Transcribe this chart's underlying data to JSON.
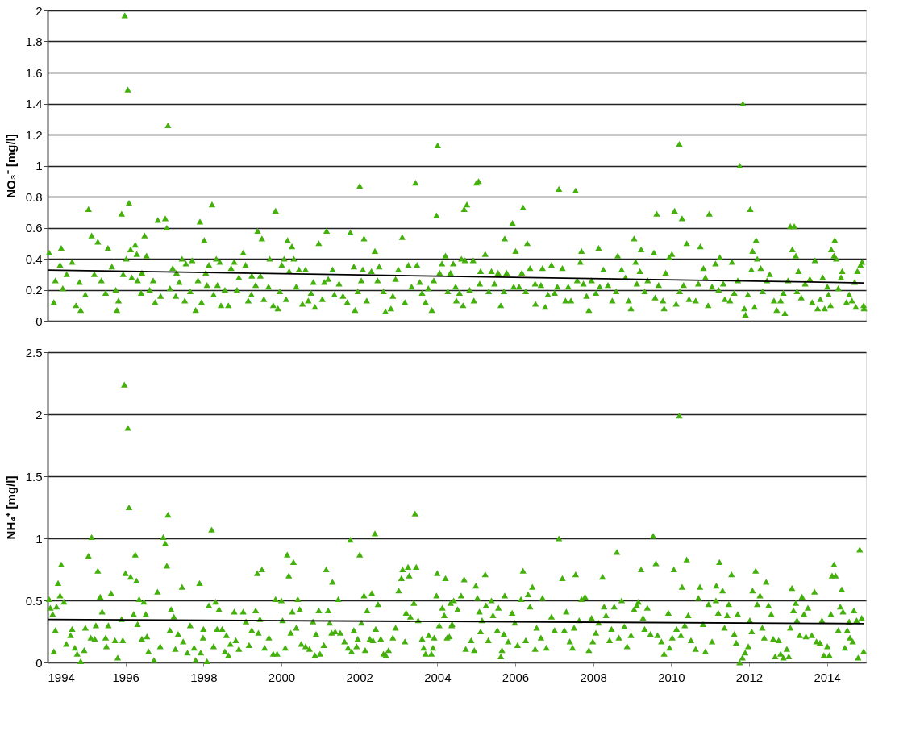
{
  "chart_data": [
    {
      "type": "scatter",
      "ylabel": "NO₃⁻ [mg/l]",
      "xlim": [
        1994,
        2015
      ],
      "xticks": [
        1994,
        1996,
        1998,
        2000,
        2002,
        2004,
        2006,
        2008,
        2010,
        2012,
        2014
      ],
      "ylim": [
        0,
        2
      ],
      "yticks": [
        0,
        0.2,
        0.4,
        0.6,
        0.8,
        1,
        1.2,
        1.4,
        1.6,
        1.8,
        2
      ],
      "grid": "y",
      "marker": "triangle",
      "tick_labels": "y",
      "series": [
        {
          "color": "#44b00c",
          "x": [
            1994.04,
            1994.16,
            1994.35,
            1994.32,
            1994.2,
            1994.63,
            1994.49,
            1994.39,
            1994.73,
            1994.85,
            1995.05,
            1995.13,
            1995.29,
            1995.55,
            1995.2,
            1995.38,
            1995.49,
            1994.97,
            1994.82,
            1995.9,
            1995.98,
            1996.06,
            1996.09,
            1995.78,
            1995.82,
            1995.75,
            1995.65,
            1995.94,
            1996.02,
            1996.13,
            1996.25,
            1996.29,
            1996.16,
            1996.31,
            1996.4,
            1996.42,
            1996.49,
            1996.54,
            1996.62,
            1996.71,
            1996.83,
            1997.02,
            1997.06,
            1997.09,
            1996.76,
            1996.9,
            1997.14,
            1997.21,
            1997.31,
            1997.38,
            1997.29,
            1997.45,
            1997.55,
            1997.71,
            1997.52,
            1997.66,
            1997.8,
            1997.86,
            1997.95,
            1997.91,
            1998.02,
            1998.22,
            1998.14,
            1998.09,
            1998.06,
            1998.26,
            1998.33,
            1998.42,
            1998.36,
            1998.45,
            1998.55,
            1998.64,
            1998.71,
            1998.79,
            1998.86,
            1998.91,
            1999.02,
            1999.08,
            1999.15,
            1999.23,
            1999.24,
            1999.39,
            1999.5,
            1999.34,
            1999.46,
            1999.55,
            1999.67,
            1999.7,
            1999.79,
            1999.85,
            1999.91,
            1999.96,
            2000.07,
            2000.01,
            2000.16,
            2000.27,
            2000.32,
            2000.2,
            2000.12,
            2000.38,
            2000.45,
            2000.54,
            2000.62,
            2000.69,
            2000.76,
            2000.82,
            2000.86,
            2000.96,
            2001.05,
            2001.1,
            2001.16,
            2001.2,
            2001.31,
            2001.36,
            2001.48,
            2001.58,
            2001.69,
            2001.77,
            2001.86,
            2001.89,
            2001.96,
            2002.01,
            2002.05,
            2002.09,
            2002.12,
            2002.19,
            2002.31,
            2002.4,
            2002.47,
            2002.51,
            2002.62,
            2002.67,
            2002.81,
            2002.86,
            2002.93,
            2003.0,
            2003.1,
            2003.17,
            2003.26,
            2003.34,
            2003.44,
            2003.48,
            2003.55,
            2003.61,
            2003.7,
            2003.77,
            2003.86,
            2003.91,
            2003.98,
            2004.01,
            2004.06,
            2004.12,
            2004.21,
            2004.27,
            2004.34,
            2004.41,
            2004.34,
            2004.47,
            2004.57,
            2004.49,
            2004.69,
            2004.76,
            2004.62,
            2004.71,
            2004.92,
            2004.83,
            2004.94,
            2004.66,
            2005.01,
            2005.06,
            2005.11,
            2005.23,
            2005.09,
            2005.32,
            2005.39,
            2005.47,
            2005.56,
            2005.63,
            2005.73,
            2005.78,
            2005.71,
            2005.93,
            2006.01,
            2005.96,
            2006.1,
            2006.17,
            2006.2,
            2006.31,
            2006.27,
            2006.38,
            2006.51,
            2006.52,
            2006.66,
            2006.7,
            2006.77,
            2006.84,
            2006.93,
            2007.01,
            2007.12,
            2007.08,
            2007.21,
            2007.29,
            2007.43,
            2007.36,
            2007.55,
            2007.59,
            2007.67,
            2007.7,
            2007.75,
            2007.83,
            2007.89,
            2007.96,
            2008.07,
            2008.14,
            2008.17,
            2008.26,
            2008.38,
            2008.49,
            2008.63,
            2008.59,
            2008.73,
            2008.83,
            2008.91,
            2008.97,
            2009.05,
            2009.09,
            2009.12,
            2009.23,
            2009.2,
            2009.32,
            2009.4,
            2009.56,
            2009.59,
            2009.63,
            2009.68,
            2009.79,
            2009.86,
            2009.82,
            2009.95,
            2010.02,
            2010.09,
            2010.13,
            2010.21,
            2010.28,
            2010.22,
            2010.32,
            2010.4,
            2010.46,
            2010.63,
            2010.7,
            2010.75,
            2010.83,
            2010.88,
            2010.95,
            2010.98,
            2011.05,
            2011.14,
            2011.25,
            2011.22,
            2011.34,
            2011.38,
            2011.51,
            2011.56,
            2011.62,
            2011.71,
            2011.76,
            2011.84,
            2011.88,
            2011.91,
            2011.97,
            2012.03,
            2012.06,
            2012.09,
            2012.18,
            2012.21,
            2012.3,
            2012.14,
            2012.35,
            2012.46,
            2012.53,
            2012.64,
            2012.71,
            2012.81,
            2012.92,
            2012.88,
            2013.0,
            2013.06,
            2013.16,
            2013.11,
            2013.2,
            2013.27,
            2013.23,
            2013.34,
            2013.44,
            2013.56,
            2013.62,
            2013.69,
            2013.76,
            2013.83,
            2013.89,
            2013.94,
            2014.01,
            2014.04,
            2014.09,
            2014.11,
            2014.2,
            2014.18,
            2014.24,
            2014.29,
            2014.36,
            2014.39,
            2014.5,
            2014.57,
            2014.64,
            2014.71,
            2014.74,
            2014.78,
            2014.86,
            2014.9,
            2014.95,
            2014.94
          ],
          "values": [
            0.44,
            0.12,
            0.47,
            0.36,
            0.26,
            0.38,
            0.3,
            0.21,
            0.1,
            0.07,
            0.72,
            0.55,
            0.51,
            0.47,
            0.3,
            0.26,
            0.18,
            0.17,
            0.25,
            0.69,
            1.97,
            1.49,
            0.76,
            0.07,
            0.13,
            0.2,
            0.35,
            0.3,
            0.4,
            0.46,
            0.49,
            0.43,
            0.28,
            0.26,
            0.18,
            0.31,
            0.55,
            0.42,
            0.2,
            0.26,
            0.65,
            0.66,
            0.6,
            1.26,
            0.12,
            0.16,
            0.21,
            0.34,
            0.31,
            0.25,
            0.16,
            0.4,
            0.37,
            0.39,
            0.13,
            0.19,
            0.07,
            0.26,
            0.12,
            0.64,
            0.52,
            0.75,
            0.36,
            0.23,
            0.31,
            0.17,
            0.4,
            0.38,
            0.23,
            0.1,
            0.2,
            0.1,
            0.34,
            0.38,
            0.2,
            0.28,
            0.44,
            0.36,
            0.13,
            0.17,
            0.29,
            0.58,
            0.53,
            0.23,
            0.29,
            0.14,
            0.22,
            0.4,
            0.1,
            0.71,
            0.08,
            0.19,
            0.4,
            0.36,
            0.52,
            0.48,
            0.4,
            0.32,
            0.14,
            0.22,
            0.33,
            0.11,
            0.33,
            0.13,
            0.18,
            0.25,
            0.09,
            0.5,
            0.14,
            0.25,
            0.58,
            0.27,
            0.33,
            0.17,
            0.24,
            0.16,
            0.12,
            0.57,
            0.35,
            0.07,
            0.19,
            0.87,
            0.26,
            0.33,
            0.53,
            0.13,
            0.32,
            0.45,
            0.26,
            0.35,
            0.19,
            0.06,
            0.08,
            0.16,
            0.27,
            0.33,
            0.54,
            0.12,
            0.36,
            0.22,
            0.89,
            0.36,
            0.25,
            0.18,
            0.12,
            0.21,
            0.07,
            0.26,
            0.68,
            1.13,
            0.31,
            0.37,
            0.42,
            0.19,
            0.31,
            0.37,
            0.3,
            0.22,
            0.18,
            0.13,
            0.72,
            0.75,
            0.4,
            0.39,
            0.39,
            0.2,
            0.13,
            0.1,
            0.89,
            0.9,
            0.32,
            0.43,
            0.24,
            0.19,
            0.32,
            0.24,
            0.31,
            0.1,
            0.53,
            0.31,
            0.19,
            0.63,
            0.45,
            0.22,
            0.22,
            0.31,
            0.73,
            0.5,
            0.19,
            0.34,
            0.24,
            0.11,
            0.23,
            0.34,
            0.09,
            0.17,
            0.36,
            0.18,
            0.85,
            0.22,
            0.34,
            0.13,
            0.13,
            0.22,
            0.84,
            0.26,
            0.38,
            0.45,
            0.24,
            0.16,
            0.07,
            0.26,
            0.18,
            0.47,
            0.22,
            0.33,
            0.23,
            0.13,
            0.42,
            0.19,
            0.33,
            0.28,
            0.13,
            0.08,
            0.53,
            0.38,
            0.24,
            0.46,
            0.32,
            0.19,
            0.26,
            0.44,
            0.15,
            0.69,
            0.23,
            0.13,
            0.31,
            0.08,
            0.41,
            0.43,
            0.71,
            0.11,
            1.14,
            0.66,
            0.19,
            0.23,
            0.5,
            0.14,
            0.13,
            0.24,
            0.48,
            0.34,
            0.28,
            0.1,
            0.69,
            0.22,
            0.37,
            0.41,
            0.2,
            0.24,
            0.14,
            0.13,
            0.38,
            0.18,
            0.26,
            1.0,
            1.4,
            0.08,
            0.04,
            0.17,
            0.72,
            0.33,
            0.45,
            0.52,
            0.4,
            0.34,
            0.09,
            0.19,
            0.26,
            0.3,
            0.13,
            0.07,
            0.13,
            0.05,
            0.18,
            0.26,
            0.61,
            0.61,
            0.46,
            0.42,
            0.32,
            0.19,
            0.15,
            0.24,
            0.27,
            0.12,
            0.39,
            0.08,
            0.14,
            0.28,
            0.08,
            0.22,
            0.17,
            0.1,
            0.46,
            0.52,
            0.42,
            0.4,
            0.21,
            0.28,
            0.32,
            0.12,
            0.17,
            0.13,
            0.25,
            0.09,
            0.32,
            0.36,
            0.38,
            0.08,
            0.1
          ]
        },
        {
          "type": "line",
          "marker": "none",
          "color": "#000000",
          "x": [
            1994,
            2014.95
          ],
          "values": [
            0.327,
            0.244
          ]
        }
      ]
    },
    {
      "type": "scatter",
      "ylabel": "NH₄⁺ [mg/l]",
      "xlim": [
        1994,
        2015
      ],
      "xticks": [
        1994,
        1996,
        1998,
        2000,
        2002,
        2004,
        2006,
        2008,
        2010,
        2012,
        2014
      ],
      "ylim": [
        0,
        2.5
      ],
      "yticks": [
        0,
        0.5,
        1,
        1.5,
        2,
        2.5
      ],
      "grid": "y",
      "marker": "triangle",
      "series": [
        {
          "color": "#44b00c",
          "x": [
            1994.04,
            1994.07,
            1994.13,
            1994.23,
            1994.16,
            1994.2,
            1994.27,
            1994.35,
            1994.32,
            1994.42,
            1994.48,
            1994.59,
            1994.63,
            1994.7,
            1994.76,
            1994.85,
            1994.94,
            1994.97,
            1995.05,
            1995.13,
            1995.11,
            1995.21,
            1995.24,
            1995.29,
            1995.35,
            1995.4,
            1995.49,
            1995.51,
            1995.56,
            1995.63,
            1995.73,
            1995.8,
            1995.9,
            1995.93,
            1995.97,
            1996.06,
            1996.09,
            1996.0,
            1996.13,
            1996.21,
            1996.25,
            1996.28,
            1996.31,
            1996.35,
            1996.42,
            1996.47,
            1996.52,
            1996.55,
            1996.59,
            1996.73,
            1996.82,
            1996.89,
            1996.97,
            1997.02,
            1997.09,
            1997.06,
            1997.14,
            1997.17,
            1997.24,
            1997.28,
            1997.35,
            1997.45,
            1997.48,
            1997.59,
            1997.66,
            1997.76,
            1997.8,
            1997.9,
            1997.93,
            1998.0,
            1997.99,
            1998.09,
            1998.14,
            1998.21,
            1998.31,
            1998.26,
            1998.4,
            1998.35,
            1998.48,
            1998.55,
            1998.64,
            1998.59,
            1998.69,
            1998.79,
            1998.83,
            1998.91,
            1999.02,
            1999.09,
            1999.17,
            1999.24,
            1999.34,
            1999.38,
            1999.5,
            1999.45,
            1999.41,
            1999.57,
            1999.68,
            1999.79,
            1999.85,
            1999.89,
            2000.0,
            2000.03,
            2000.1,
            2000.15,
            2000.19,
            2000.31,
            2000.28,
            2000.24,
            2000.38,
            2000.42,
            2000.47,
            2000.51,
            2000.62,
            2000.72,
            2000.81,
            2000.86,
            2000.89,
            2000.96,
            2000.99,
            2001.09,
            2001.15,
            2001.2,
            2001.24,
            2001.31,
            2001.29,
            2001.38,
            2001.46,
            2001.51,
            2001.62,
            2001.71,
            2001.77,
            2001.8,
            2001.86,
            2001.96,
            2001.93,
            2002.01,
            2002.05,
            2002.12,
            2002.15,
            2002.2,
            2002.27,
            2002.32,
            2002.35,
            2002.4,
            2002.42,
            2002.48,
            2002.55,
            2002.62,
            2002.68,
            2002.75,
            2002.86,
            2002.93,
            2003.01,
            2003.08,
            2003.11,
            2003.17,
            2003.25,
            2003.28,
            2003.2,
            2003.31,
            2003.4,
            2003.43,
            2003.46,
            2003.51,
            2003.61,
            2003.65,
            2003.7,
            2003.78,
            2003.85,
            2003.89,
            2003.92,
            2004.0,
            2003.98,
            2004.05,
            2004.13,
            2004.18,
            2004.21,
            2004.25,
            2004.34,
            2004.37,
            2004.42,
            2004.52,
            2004.38,
            2004.31,
            2004.69,
            2004.61,
            2004.73,
            2004.87,
            2004.95,
            2004.99,
            2005.03,
            2005.08,
            2005.15,
            2005.11,
            2005.23,
            2005.25,
            2005.31,
            2005.39,
            2005.43,
            2005.57,
            2005.54,
            2005.63,
            2005.66,
            2005.73,
            2005.71,
            2005.82,
            2005.92,
            2005.99,
            2006.06,
            2006.15,
            2006.2,
            2006.27,
            2006.38,
            2006.33,
            2006.44,
            2006.51,
            2006.55,
            2006.7,
            2006.66,
            2006.8,
            2006.93,
            2007.01,
            2007.12,
            2007.21,
            2007.26,
            2007.31,
            2007.4,
            2007.47,
            2007.51,
            2007.55,
            2007.64,
            2007.7,
            2007.79,
            2007.89,
            2007.96,
            2007.99,
            2008.07,
            2008.14,
            2008.24,
            2008.28,
            2008.33,
            2008.42,
            2008.47,
            2008.54,
            2008.61,
            2008.66,
            2008.73,
            2008.8,
            2008.87,
            2008.97,
            2009.05,
            2009.12,
            2009.16,
            2009.23,
            2009.28,
            2009.32,
            2009.39,
            2009.47,
            2009.54,
            2009.61,
            2009.65,
            2009.75,
            2009.82,
            2009.93,
            2009.96,
            2010.07,
            2010.03,
            2010.14,
            2010.21,
            2010.25,
            2010.28,
            2010.35,
            2010.4,
            2010.44,
            2010.51,
            2010.63,
            2010.7,
            2010.74,
            2010.82,
            2010.88,
            2010.96,
            2011.05,
            2011.15,
            2011.16,
            2011.21,
            2011.24,
            2011.32,
            2011.37,
            2011.44,
            2011.48,
            2011.55,
            2011.62,
            2011.67,
            2011.71,
            2011.76,
            2011.83,
            2011.9,
            2011.98,
            2012.02,
            2012.07,
            2012.09,
            2012.17,
            2012.21,
            2012.28,
            2012.34,
            2012.39,
            2012.44,
            2012.5,
            2012.57,
            2012.62,
            2012.67,
            2012.76,
            2012.81,
            2012.88,
            2012.97,
            2013.02,
            2013.06,
            2013.1,
            2013.14,
            2013.2,
            2013.23,
            2013.3,
            2013.36,
            2013.41,
            2013.46,
            2013.51,
            2013.61,
            2013.68,
            2013.73,
            2013.82,
            2013.87,
            2013.92,
            2014.01,
            2014.06,
            2014.1,
            2014.13,
            2014.18,
            2014.22,
            2014.29,
            2014.34,
            2014.38,
            2014.41,
            2014.46,
            2014.52,
            2014.57,
            2014.59,
            2014.66,
            2014.69,
            2014.76,
            2014.8,
            2014.84,
            2014.89,
            2014.94
          ],
          "values": [
            0.51,
            0.44,
            0.39,
            0.45,
            0.09,
            0.26,
            0.64,
            0.79,
            0.54,
            0.49,
            0.15,
            0.22,
            0.27,
            0.12,
            0.07,
            0.01,
            0.1,
            0.28,
            0.86,
            1.01,
            0.2,
            0.19,
            0.3,
            0.74,
            0.53,
            0.41,
            0.2,
            0.13,
            0.3,
            0.56,
            0.18,
            0.04,
            0.35,
            0.18,
            2.24,
            1.89,
            1.25,
            0.72,
            0.69,
            0.39,
            0.87,
            0.66,
            0.31,
            0.51,
            0.19,
            0.49,
            0.39,
            0.21,
            0.09,
            0.02,
            0.57,
            0.13,
            1.01,
            0.96,
            1.19,
            0.78,
            0.26,
            0.43,
            0.37,
            0.11,
            0.23,
            0.61,
            0.17,
            0.08,
            0.3,
            0.12,
            0.02,
            0.64,
            0.08,
            0.27,
            0.2,
            0.01,
            0.46,
            1.07,
            0.49,
            0.13,
            0.43,
            0.27,
            0.27,
            0.09,
            0.06,
            0.22,
            0.15,
            0.41,
            0.18,
            0.11,
            0.41,
            0.33,
            0.14,
            0.26,
            0.42,
            0.72,
            0.75,
            0.35,
            0.24,
            0.12,
            0.2,
            0.07,
            0.51,
            0.07,
            0.5,
            0.34,
            0.12,
            0.87,
            0.7,
            0.81,
            0.41,
            0.24,
            0.28,
            0.51,
            0.43,
            0.15,
            0.13,
            0.11,
            0.33,
            0.06,
            0.23,
            0.42,
            0.07,
            0.14,
            0.75,
            0.42,
            0.32,
            0.65,
            0.24,
            0.25,
            0.51,
            0.24,
            0.17,
            0.12,
            0.99,
            0.09,
            0.26,
            0.19,
            0.13,
            0.87,
            0.32,
            0.54,
            0.1,
            0.42,
            0.19,
            0.56,
            0.18,
            1.04,
            0.27,
            0.47,
            0.19,
            0.07,
            0.06,
            0.1,
            0.2,
            0.28,
            0.58,
            0.68,
            0.75,
            0.17,
            0.77,
            0.7,
            0.4,
            0.37,
            0.48,
            1.2,
            0.77,
            0.34,
            0.19,
            0.12,
            0.07,
            0.22,
            0.07,
            0.12,
            0.2,
            0.72,
            0.54,
            0.3,
            0.44,
            0.38,
            0.68,
            0.2,
            0.48,
            0.3,
            0.5,
            0.43,
            0.31,
            0.21,
            0.67,
            0.54,
            0.11,
            0.18,
            0.1,
            0.62,
            0.52,
            0.41,
            0.34,
            0.25,
            0.71,
            0.46,
            0.18,
            0.5,
            0.38,
            0.44,
            0.26,
            0.05,
            0.1,
            0.54,
            0.23,
            0.17,
            0.4,
            0.32,
            0.14,
            0.51,
            0.74,
            0.18,
            0.45,
            0.55,
            0.61,
            0.11,
            0.28,
            0.52,
            0.2,
            0.12,
            0.37,
            0.26,
            1.0,
            0.68,
            0.26,
            0.41,
            0.17,
            0.12,
            0.28,
            0.71,
            0.34,
            0.51,
            0.53,
            0.1,
            0.36,
            0.17,
            0.24,
            0.32,
            0.69,
            0.45,
            0.38,
            0.18,
            0.27,
            0.45,
            0.89,
            0.2,
            0.5,
            0.29,
            0.13,
            0.22,
            0.43,
            0.46,
            0.49,
            0.75,
            0.36,
            0.27,
            0.44,
            0.23,
            1.02,
            0.8,
            0.22,
            0.17,
            0.07,
            0.4,
            0.12,
            0.75,
            0.2,
            0.27,
            1.99,
            0.22,
            0.61,
            0.3,
            0.83,
            0.38,
            0.18,
            0.11,
            0.52,
            0.61,
            0.31,
            0.09,
            0.47,
            0.17,
            0.5,
            0.62,
            0.4,
            0.81,
            0.58,
            0.28,
            0.38,
            0.47,
            0.71,
            0.23,
            0.16,
            0.39,
            0.0,
            0.04,
            0.08,
            0.13,
            0.34,
            0.25,
            0.58,
            0.74,
            0.47,
            0.54,
            0.28,
            0.2,
            0.65,
            0.46,
            0.39,
            0.19,
            0.05,
            0.18,
            0.07,
            0.04,
            0.11,
            0.05,
            0.28,
            0.6,
            0.42,
            0.48,
            0.34,
            0.22,
            0.53,
            0.39,
            0.21,
            0.44,
            0.22,
            0.57,
            0.17,
            0.16,
            0.34,
            0.06,
            0.13,
            0.06,
            0.39,
            0.7,
            0.79,
            0.7,
            0.26,
            0.45,
            0.59,
            0.41,
            0.12,
            0.26,
            0.33,
            0.2,
            0.17,
            0.42,
            0.34,
            0.04,
            0.91,
            0.36,
            0.09
          ]
        },
        {
          "type": "line",
          "marker": "none",
          "color": "#000000",
          "x": [
            1994,
            2014.95
          ],
          "values": [
            0.346,
            0.313
          ]
        }
      ]
    }
  ]
}
